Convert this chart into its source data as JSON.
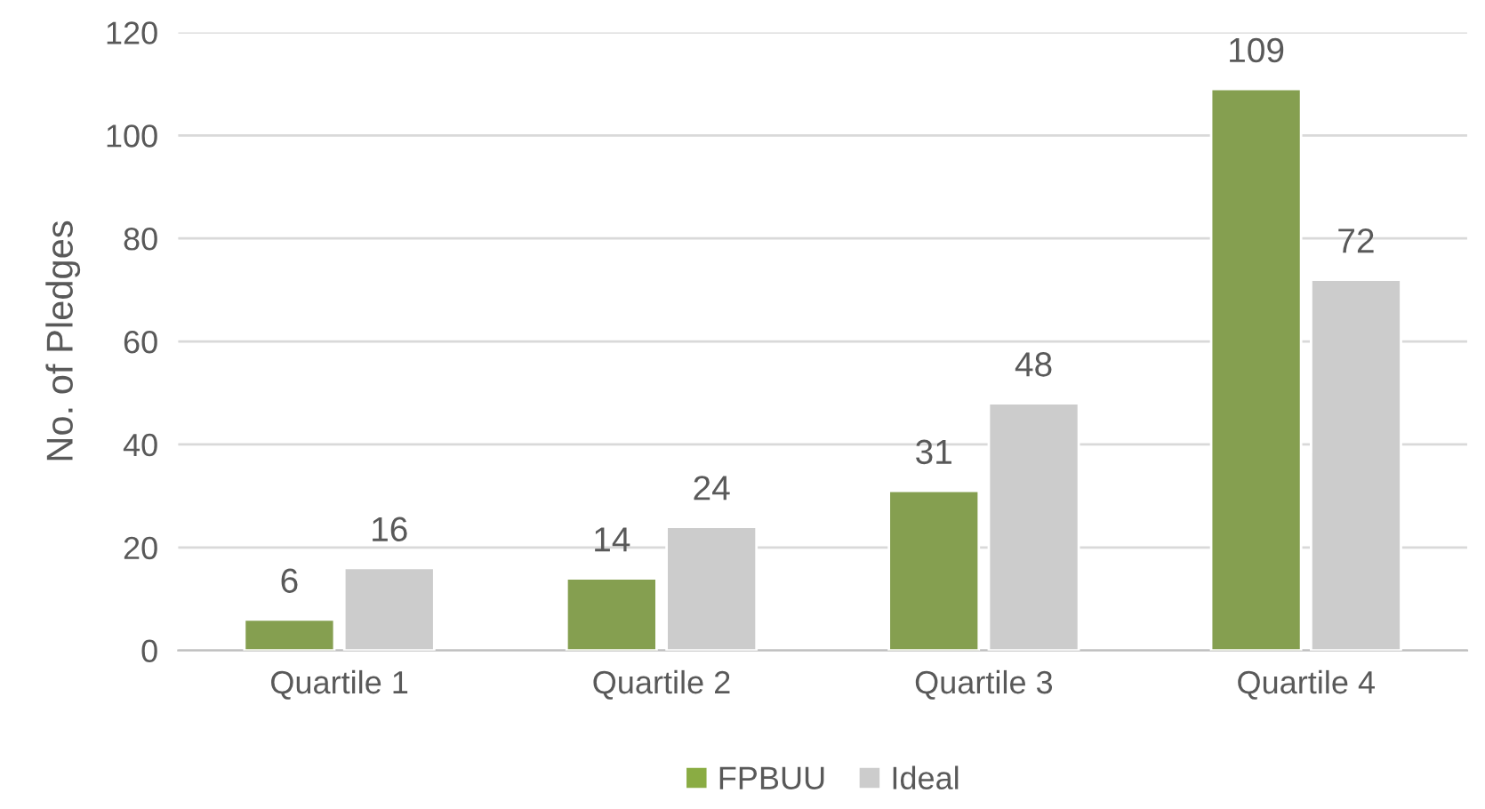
{
  "chart_data": {
    "type": "bar",
    "ylabel": "No. of Pledges",
    "categories": [
      "Quartile 1",
      "Quartile 2",
      "Quartile 3",
      "Quartile 4"
    ],
    "series": [
      {
        "name": "FPBUU",
        "color": "#8aac43",
        "values": [
          6,
          14,
          31,
          109
        ]
      },
      {
        "name": "Ideal",
        "color": "#cccccc",
        "values": [
          16,
          24,
          48,
          72
        ]
      }
    ],
    "ylim": [
      0,
      120
    ],
    "yticks": [
      0,
      20,
      40,
      60,
      80,
      100,
      120
    ],
    "grid": "y",
    "legend": "bottom",
    "data_labels": true
  }
}
